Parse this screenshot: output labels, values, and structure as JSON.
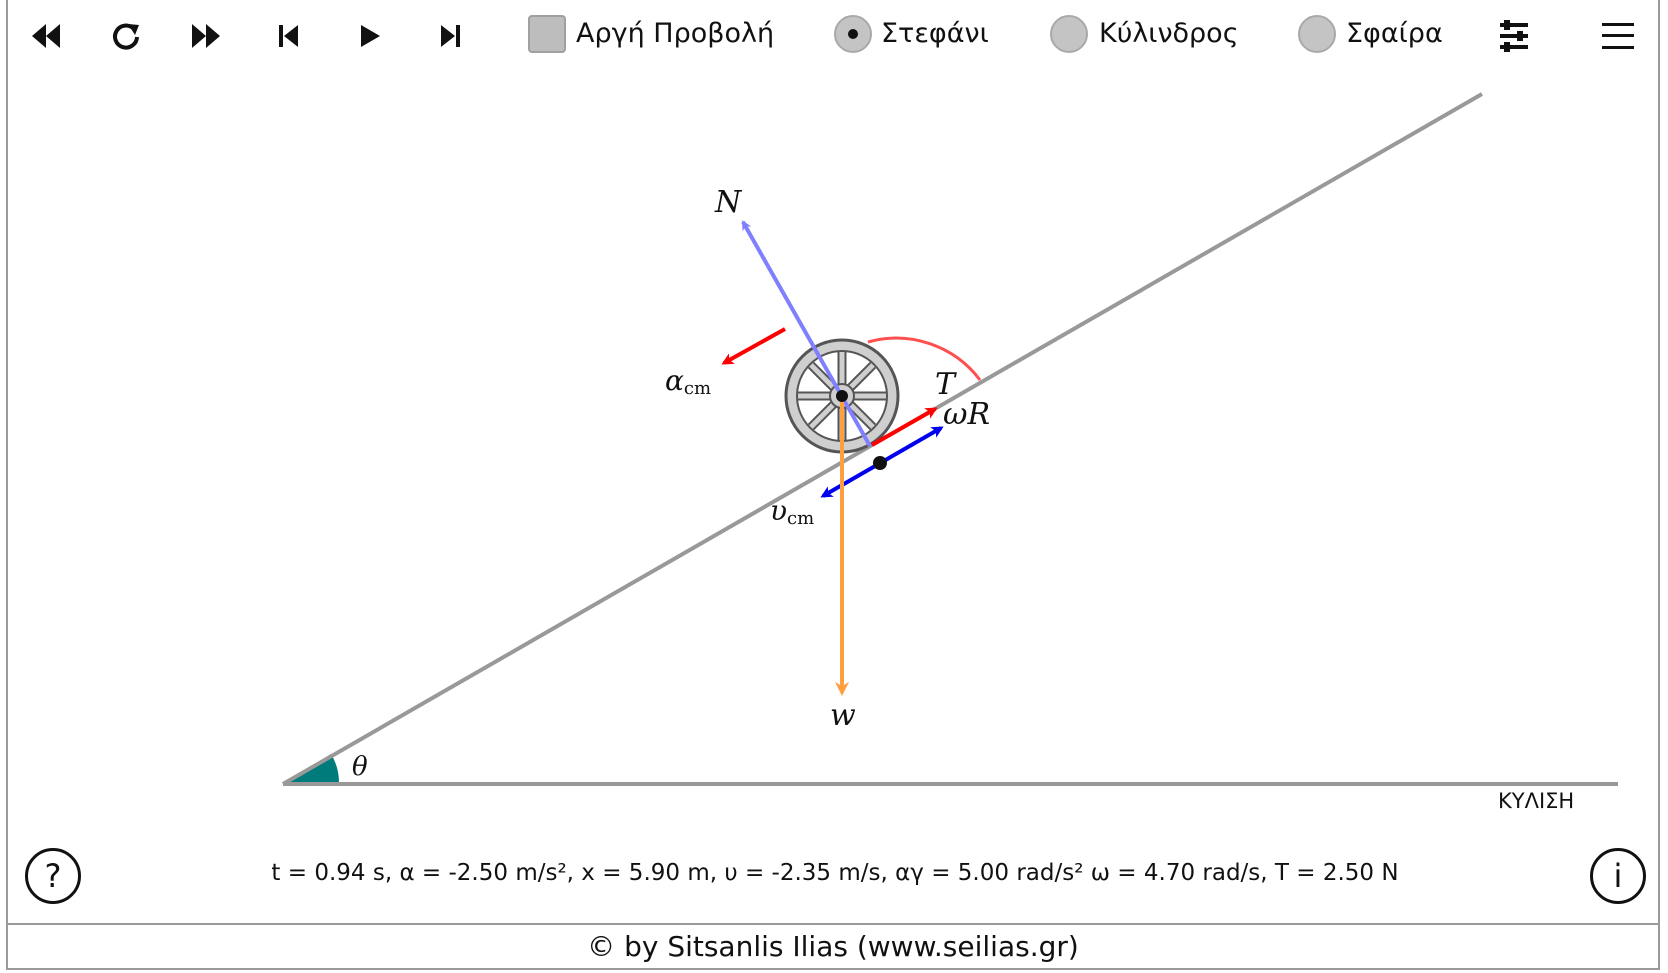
{
  "toolbar": {
    "icons": [
      "fast-rewind-icon",
      "reset-icon",
      "fast-forward-icon",
      "skip-start-icon",
      "play-icon",
      "step-forward-icon",
      "sliders-icon",
      "hamburger-menu-icon"
    ],
    "slow_motion_label": "Αργή Προβολή",
    "slow_motion_checked": false,
    "body_options": [
      {
        "label": "Στεφάνι",
        "selected": true
      },
      {
        "label": "Κύλινδρος",
        "selected": false
      },
      {
        "label": "Σφαίρα",
        "selected": false
      }
    ]
  },
  "diagram": {
    "labels": {
      "normal": "N",
      "acceleration": "α",
      "acceleration_sub": "cm",
      "friction": "T",
      "tangential": "ωR",
      "velocity": "υ",
      "velocity_sub": "cm",
      "weight": "w",
      "angle": "θ"
    },
    "mode": "ΚΥΛΙΣΗ",
    "colors": {
      "incline": "#999999",
      "normal_force": "#8080ff",
      "acceleration": "#ff0000",
      "friction": "#ff0000",
      "velocity": "#0000ee",
      "weight": "#ff9f40",
      "angle_fill": "#007b7b",
      "rotation_arc": "#ff5050",
      "wheel_fill": "#cfcfcf"
    }
  },
  "readout": "t = 0.94 s, α = -2.50 m/s², x = 5.90 m, υ = -2.35 m/s, αγ = 5.00 rad/s² ω = 4.70 rad/s, T = 2.50 N",
  "help_button": "?",
  "info_button": "i",
  "footer": "© by Sitsanlis Ilias (www.seilias.gr)"
}
